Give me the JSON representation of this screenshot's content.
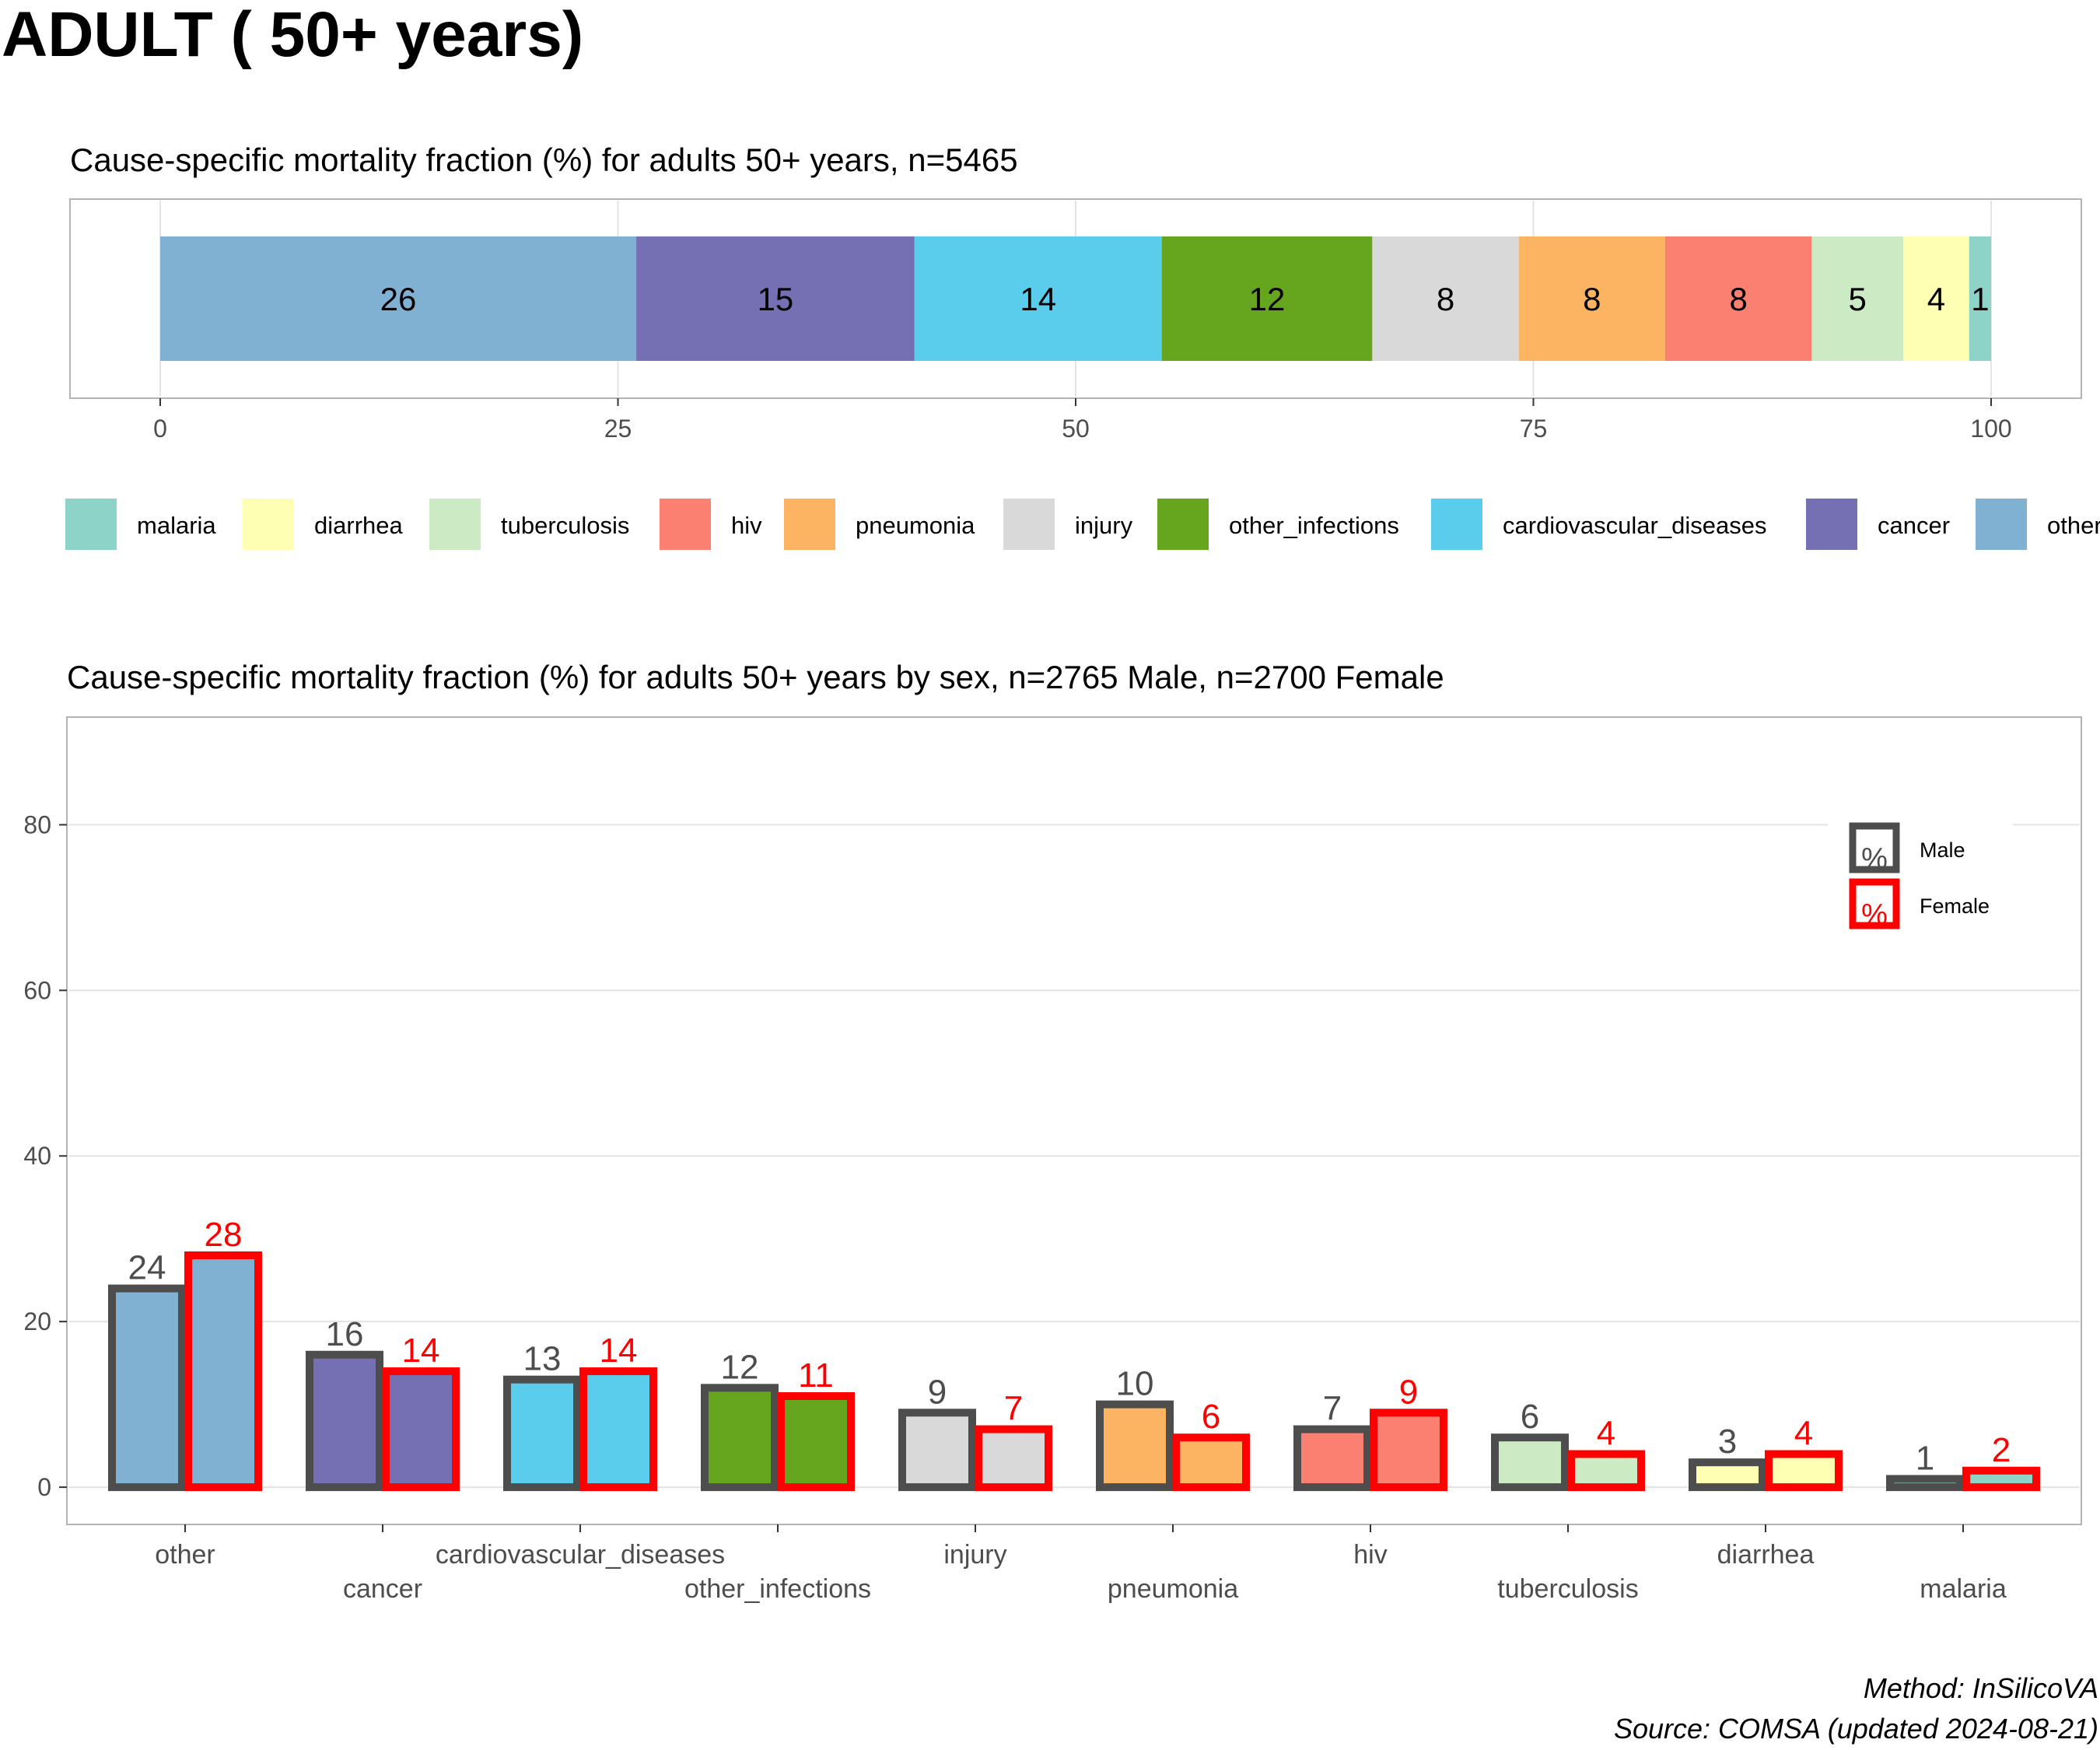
{
  "page_title": "ADULT ( 50+ years)",
  "footer": {
    "method": "Method: InSilicoVA",
    "source": "Source: COMSA (updated 2024-08-21)"
  },
  "colors": {
    "malaria": "#8DD3C7",
    "diarrhea": "#FFFFB3",
    "tuberculosis": "#CCEBC5",
    "hiv": "#FB8072",
    "pneumonia": "#FDB462",
    "injury": "#D9D9D9",
    "other_infections": "#66A61E",
    "cardiovascular_diseases": "#5BCDEC",
    "cancer": "#7570B3",
    "other": "#80B1D3",
    "male_outline": "#4D4D4D",
    "female_outline": "#FF0000"
  },
  "chart_data": [
    {
      "type": "bar",
      "orientation": "horizontal-stacked",
      "title": "Cause-specific mortality fraction (%) for adults 50+ years, n=5465",
      "xlim": [
        0,
        100
      ],
      "x_ticks": [
        0,
        25,
        50,
        75,
        100
      ],
      "grid": true,
      "legend_position": "bottom",
      "legend": [
        "malaria",
        "diarrhea",
        "tuberculosis",
        "hiv",
        "pneumonia",
        "injury",
        "other_infections",
        "cardiovascular_diseases",
        "cancer",
        "other"
      ],
      "categories": [
        "other",
        "cancer",
        "cardiovascular_diseases",
        "other_infections",
        "injury",
        "pneumonia",
        "hiv",
        "tuberculosis",
        "diarrhea",
        "malaria"
      ],
      "values": [
        26,
        15.2,
        13.5,
        11.5,
        8,
        8,
        8,
        5,
        3.6,
        1.2
      ],
      "labels": [
        "26",
        "15",
        "14",
        "12",
        "8",
        "8",
        "8",
        "5",
        "4",
        "1"
      ]
    },
    {
      "type": "bar",
      "orientation": "vertical-grouped",
      "title": "Cause-specific mortality fraction (%) for adults 50+ years by sex, n=2765 Male, n=2700 Female",
      "ylim": [
        -4.5,
        93
      ],
      "y_ticks": [
        0,
        20,
        40,
        60,
        80
      ],
      "grid": true,
      "legend_position": "top-right",
      "legend_symbol": "%",
      "categories": [
        "other",
        "cancer",
        "cardiovascular_diseases",
        "other_infections",
        "injury",
        "pneumonia",
        "hiv",
        "tuberculosis",
        "diarrhea",
        "malaria"
      ],
      "series": [
        {
          "name": "Male",
          "values": [
            24,
            16,
            13,
            12,
            9,
            10,
            7,
            6,
            3,
            1
          ],
          "labels": [
            "24",
            "16",
            "13",
            "12",
            "9",
            "10",
            "7",
            "6",
            "3",
            "1"
          ]
        },
        {
          "name": "Female",
          "values": [
            28,
            14,
            14,
            11,
            7,
            6,
            9,
            4,
            4,
            2
          ],
          "labels": [
            "28",
            "14",
            "14",
            "11",
            "7",
            "6",
            "9",
            "4",
            "4",
            "2"
          ]
        }
      ]
    }
  ]
}
